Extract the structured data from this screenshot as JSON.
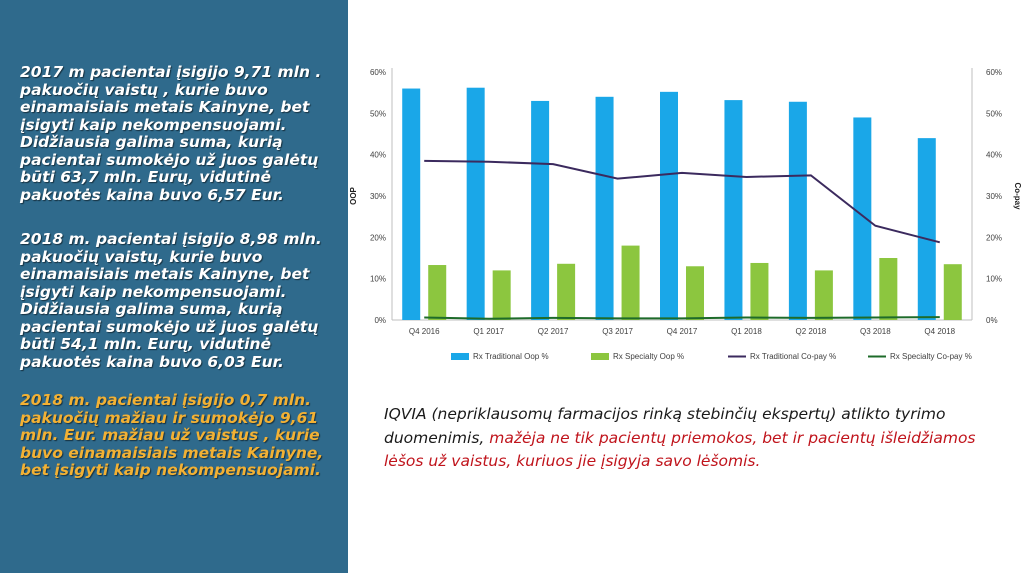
{
  "left_panel": {
    "paragraph_1": "2017 m pacientai įsigijo 9,71 mln . pakuočių vaistų , kurie buvo einamaisiais metais Kainyne, bet įsigyti kaip nekompensuojami. Didžiausia galima suma, kurią pacientai sumokėjo už juos galėtų būti 63,7 mln.  Eurų, vidutinė pakuotės kaina buvo 6,57 Eur.",
    "paragraph_2": "2018 m. pacientai įsigijo 8,98 mln. pakuočių vaistų, kurie buvo einamaisiais metais Kainyne, bet įsigyti kaip nekompensuojami. Didžiausia galima suma, kurią pacientai sumokėjo už juos galėtų būti 54,1 mln.  Eurų, vidutinė pakuotės kaina buvo 6,03 Eur.",
    "paragraph_3": "2018 m. pacientai įsigijo 0,7 mln. pakuočių mažiau ir sumokėjo 9,61 mln. Eur. mažiau už vaistus , kurie buvo einamaisiais metais Kainyne, bet įsigyti kaip nekompensuojami."
  },
  "note": {
    "text_part1": "IQVIA (nepriklausomų farmacijos rinką stebinčių ekspertų)  atlikto tyrimo duomenimis, ",
    "text_part2": "mažėja ne tik pacientų priemokos, bet ir pacientų išleidžiamos lėšos už vaistus, kuriuos jie įsigyja savo lėšomis."
  },
  "colors": {
    "panel": "#2f6a8c",
    "traditional_oop": "#1aa7e8",
    "specialty_oop": "#8cc63f",
    "traditional_copay": "#3b2a5e",
    "specialty_copay": "#1e6b2a",
    "highlight_text": "#f2b134",
    "note_red": "#c0141c"
  },
  "chart_data": {
    "type": "bar",
    "categories": [
      "Q4 2016",
      "Q1 2017",
      "Q2 2017",
      "Q3 2017",
      "Q4 2017",
      "Q1 2018",
      "Q2 2018",
      "Q3 2018",
      "Q4 2018"
    ],
    "series": [
      {
        "name": "Rx Traditional Oop %",
        "kind": "bar",
        "axis": "left",
        "values": [
          56,
          56.2,
          53,
          54,
          55.2,
          53.2,
          52.8,
          49,
          44
        ]
      },
      {
        "name": "Rx Specialty Oop %",
        "kind": "bar",
        "axis": "left",
        "values": [
          13.3,
          12,
          13.6,
          18,
          13,
          13.8,
          12,
          15,
          13.5
        ]
      },
      {
        "name": "Rx Traditional Co-pay %",
        "kind": "line",
        "axis": "right",
        "values": [
          38.5,
          38.3,
          37.7,
          34.2,
          35.6,
          34.6,
          35,
          22.8,
          18.8
        ]
      },
      {
        "name": "Rx Specialty Co-pay %",
        "kind": "line",
        "axis": "right",
        "values": [
          0.6,
          0.3,
          0.5,
          0.4,
          0.4,
          0.6,
          0.5,
          0.6,
          0.7
        ]
      }
    ],
    "ylabel": "OOP",
    "y2label": "Co-pay",
    "ylim": [
      0,
      60
    ],
    "y2lim": [
      0,
      60
    ],
    "yticks": [
      "0%",
      "10%",
      "20%",
      "30%",
      "40%",
      "50%",
      "60%"
    ],
    "grid": false,
    "legend_position": "bottom"
  }
}
